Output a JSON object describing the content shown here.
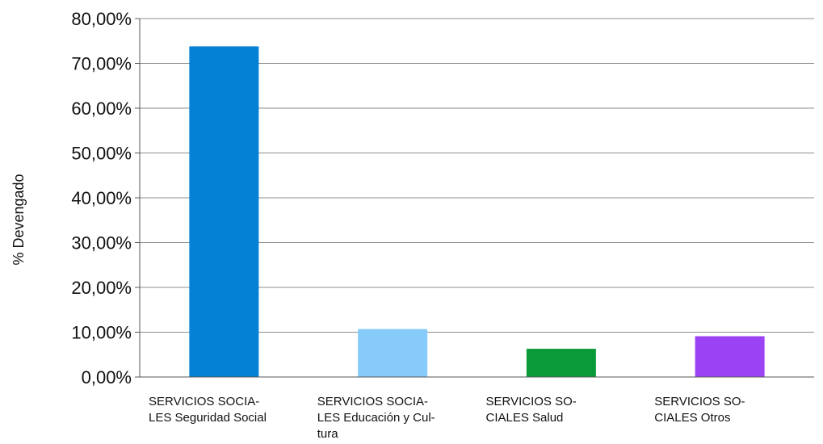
{
  "chart_data": {
    "type": "bar",
    "ylabel": "% Devengado",
    "ylim": [
      0,
      80
    ],
    "yticks": [
      0,
      10,
      20,
      30,
      40,
      50,
      60,
      70,
      80
    ],
    "ytick_labels": [
      "0,00%",
      "10,00%",
      "20,00%",
      "30,00%",
      "40,00%",
      "50,00%",
      "60,00%",
      "70,00%",
      "80,00%"
    ],
    "grid": true,
    "categories": [
      [
        "SERVICIOS SOCIA-",
        "LES Seguridad Social"
      ],
      [
        "SERVICIOS SOCIA-",
        "LES Educación y Cul-",
        "tura"
      ],
      [
        "SERVICIOS SO-",
        "CIALES Salud"
      ],
      [
        "SERVICIOS SO-",
        "CIALES Otros"
      ]
    ],
    "values": [
      73.8,
      10.7,
      6.3,
      9.1
    ],
    "colors": [
      "#0480d4",
      "#87cbfb",
      "#0b9a3a",
      "#9b42f5"
    ]
  }
}
